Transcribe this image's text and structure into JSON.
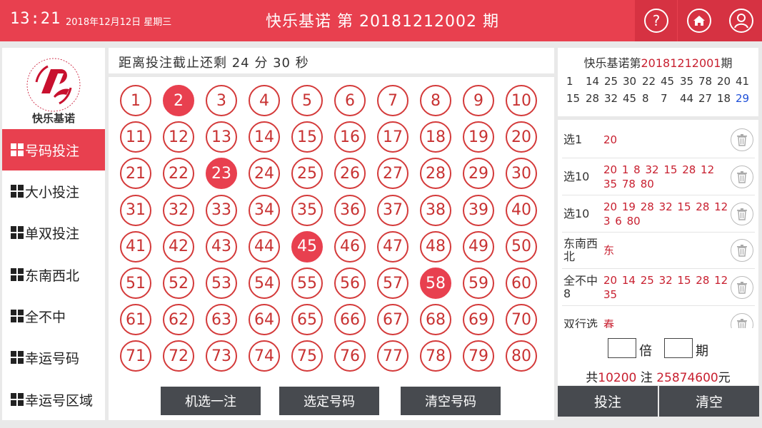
{
  "header": {
    "time": "13:21",
    "date": "2018年12月12日  星期三",
    "title": "快乐基诺 第 20181212002 期",
    "help_icon": "help-circle-icon",
    "home_icon": "home-icon",
    "user_icon": "user-icon"
  },
  "logo": {
    "alt_icon": "china-welfare-lottery-logo",
    "name": "快乐基诺"
  },
  "sidebar": {
    "items": [
      {
        "label": "号码投注",
        "active": true
      },
      {
        "label": "大小投注"
      },
      {
        "label": "单双投注"
      },
      {
        "label": "东南西北"
      },
      {
        "label": "全不中"
      },
      {
        "label": "幸运号码"
      },
      {
        "label": "幸运号区域"
      }
    ]
  },
  "countdown": {
    "text": "距离投注截止还剩 24 分 30 秒"
  },
  "numbers": {
    "rows": [
      [
        "1",
        "2",
        "3",
        "4",
        "5",
        "6",
        "7",
        "8",
        "9",
        "10"
      ],
      [
        "11",
        "12",
        "13",
        "14",
        "15",
        "16",
        "17",
        "18",
        "19",
        "20"
      ],
      [
        "21",
        "22",
        "23",
        "24",
        "25",
        "26",
        "27",
        "28",
        "29",
        "30"
      ],
      [
        "31",
        "32",
        "33",
        "34",
        "35",
        "36",
        "37",
        "38",
        "39",
        "40"
      ],
      [
        "41",
        "42",
        "43",
        "44",
        "45",
        "46",
        "47",
        "48",
        "49",
        "50"
      ],
      [
        "51",
        "52",
        "53",
        "54",
        "55",
        "56",
        "57",
        "58",
        "59",
        "60"
      ],
      [
        "61",
        "62",
        "63",
        "64",
        "65",
        "66",
        "67",
        "68",
        "69",
        "70"
      ],
      [
        "71",
        "72",
        "73",
        "74",
        "75",
        "76",
        "77",
        "78",
        "79",
        "80"
      ]
    ],
    "selected": [
      "2",
      "23",
      "45",
      "58"
    ]
  },
  "actions": {
    "random": "机选一注",
    "confirm": "选定号码",
    "clear": "清空号码"
  },
  "previous_draw": {
    "title_prefix": "快乐基诺第",
    "issue": "20181212001",
    "title_suffix": "期",
    "row1": [
      "1",
      "14",
      "25",
      "30",
      "22",
      "45",
      "35",
      "78",
      "20",
      "41"
    ],
    "row2": [
      "15",
      "28",
      "32",
      "45",
      "8",
      "7",
      "44",
      "27",
      "18",
      "29"
    ],
    "highlight_color": "#1e4fd8"
  },
  "bets": [
    {
      "type": "选1",
      "numbers": "20"
    },
    {
      "type": "选10",
      "numbers": "20 1  8  32 15 28 12 35 78 80"
    },
    {
      "type": "选10",
      "numbers": "20 19 28 32 15 28 12 3  6  80"
    },
    {
      "type": "东南西北",
      "numbers": "东"
    },
    {
      "type": "全不中8",
      "numbers": "20 14 25 32 15 28 12 35"
    },
    {
      "type": "双行选",
      "numbers": "春"
    }
  ],
  "settings": {
    "multiple_label": "倍",
    "period_label": "期",
    "total_prefix": "共",
    "total_count": "10200",
    "total_mid": " 注  ",
    "total_amount": "25874600",
    "total_suffix": "元"
  },
  "footer": {
    "bet": "投注",
    "clear": "清空"
  },
  "colors": {
    "accent": "#e8404f",
    "ball_border": "#d43a3a",
    "button_dark": "#474a4f"
  }
}
